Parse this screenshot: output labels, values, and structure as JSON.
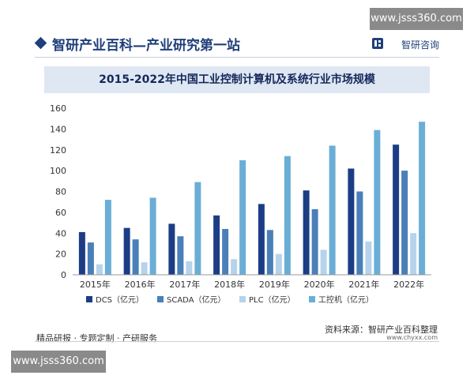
{
  "watermark": {
    "text": "www.jsss360.com"
  },
  "header": {
    "title": "智研产业百科—产业研究第一站",
    "brand": "智研咨询"
  },
  "footer": {
    "slogan": "精品研报 · 专题定制 · 产研服务",
    "source": "资料来源：智研产业百科整理",
    "site": "www.chyxx.com"
  },
  "colors": {
    "dcs": "#1c3d85",
    "scada": "#4a7fb8",
    "plc": "#b7d3ec",
    "ipc": "#6aaed6",
    "header": "#1f3f7a"
  },
  "chart_data": {
    "type": "bar",
    "title": "2015-2022年中国工业控制计算机及系统行业市场规模",
    "categories": [
      "2015年",
      "2016年",
      "2017年",
      "2018年",
      "2019年",
      "2020年",
      "2021年",
      "2022年"
    ],
    "series": [
      {
        "name": "DCS（亿元）",
        "values": [
          41,
          45,
          49,
          57,
          68,
          81,
          102,
          125
        ]
      },
      {
        "name": "SCADA（亿元）",
        "values": [
          31,
          34,
          37,
          44,
          43,
          63,
          80,
          100
        ]
      },
      {
        "name": "PLC（亿元）",
        "values": [
          10,
          12,
          13,
          15,
          20,
          24,
          32,
          40
        ]
      },
      {
        "name": "工控机（亿元）",
        "values": [
          72,
          74,
          89,
          110,
          114,
          124,
          139,
          147
        ]
      }
    ],
    "y_ticks": [
      "0",
      "20",
      "40",
      "60",
      "80",
      "100",
      "120",
      "140",
      "160"
    ],
    "ylim": [
      0,
      160
    ],
    "legend": "bottom",
    "grid": false
  }
}
